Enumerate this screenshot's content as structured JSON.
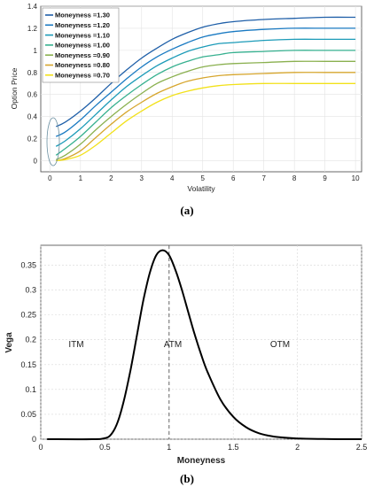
{
  "chart_data": [
    {
      "type": "line",
      "caption": "(a)",
      "xlabel": "Volatility",
      "ylabel": "Option Price",
      "xlim": [
        -0.3,
        10.2
      ],
      "ylim": [
        -0.1,
        1.4
      ],
      "xticks": [
        "0",
        "1",
        "2",
        "3",
        "4",
        "5",
        "6",
        "7",
        "8",
        "9",
        "10"
      ],
      "yticks": [
        "0",
        "0.2",
        "0.4",
        "0.6",
        "0.8",
        "1",
        "1.2",
        "1.4"
      ],
      "grid": true,
      "legend_position": "top-left",
      "annotation": "ellipse around curve starts near volatility 0",
      "series": [
        {
          "name": "Moneyness =1.30",
          "color": "#1f5fa8",
          "x": [
            0.2,
            0.5,
            1,
            1.5,
            2,
            2.5,
            3,
            3.5,
            4,
            4.5,
            5,
            5.5,
            6,
            7,
            8,
            9,
            10
          ],
          "y": [
            0.31,
            0.35,
            0.45,
            0.57,
            0.7,
            0.82,
            0.93,
            1.02,
            1.1,
            1.16,
            1.21,
            1.24,
            1.26,
            1.28,
            1.29,
            1.3,
            1.3
          ]
        },
        {
          "name": "Moneyness =1.20",
          "color": "#1a7ac2",
          "x": [
            0.2,
            0.5,
            1,
            1.5,
            2,
            2.5,
            3,
            3.5,
            4,
            4.5,
            5,
            5.5,
            6,
            7,
            8,
            9,
            10
          ],
          "y": [
            0.22,
            0.26,
            0.37,
            0.5,
            0.62,
            0.74,
            0.85,
            0.94,
            1.01,
            1.07,
            1.12,
            1.15,
            1.17,
            1.19,
            1.2,
            1.2,
            1.2
          ]
        },
        {
          "name": "Moneyness =1.10",
          "color": "#1c9bb8",
          "x": [
            0.2,
            0.5,
            1,
            1.5,
            2,
            2.5,
            3,
            3.5,
            4,
            4.5,
            5,
            5.5,
            6,
            7,
            8,
            9,
            10
          ],
          "y": [
            0.13,
            0.18,
            0.29,
            0.42,
            0.55,
            0.67,
            0.77,
            0.86,
            0.93,
            0.99,
            1.03,
            1.06,
            1.07,
            1.09,
            1.1,
            1.1,
            1.1
          ]
        },
        {
          "name": "Moneyness =1.00",
          "color": "#36b08f",
          "x": [
            0.2,
            0.5,
            1,
            1.5,
            2,
            2.5,
            3,
            3.5,
            4,
            4.5,
            5,
            5.5,
            6,
            7,
            8,
            9,
            10
          ],
          "y": [
            0.05,
            0.11,
            0.22,
            0.35,
            0.48,
            0.59,
            0.69,
            0.78,
            0.85,
            0.9,
            0.94,
            0.96,
            0.98,
            0.99,
            1.0,
            1.0,
            1.0
          ]
        },
        {
          "name": "Moneyness =0.90",
          "color": "#8ab04f",
          "x": [
            0.2,
            0.5,
            1,
            1.5,
            2,
            2.5,
            3,
            3.5,
            4,
            4.5,
            5,
            5.5,
            6,
            7,
            8,
            9,
            10
          ],
          "y": [
            0.01,
            0.05,
            0.15,
            0.28,
            0.4,
            0.51,
            0.61,
            0.7,
            0.76,
            0.81,
            0.85,
            0.87,
            0.88,
            0.89,
            0.9,
            0.9,
            0.9
          ]
        },
        {
          "name": "Moneyness =0.80",
          "color": "#d6a62e",
          "x": [
            0.2,
            0.5,
            1,
            1.5,
            2,
            2.5,
            3,
            3.5,
            4,
            4.5,
            5,
            5.5,
            6,
            7,
            8,
            9,
            10
          ],
          "y": [
            0.0,
            0.02,
            0.09,
            0.21,
            0.33,
            0.44,
            0.53,
            0.61,
            0.67,
            0.72,
            0.75,
            0.77,
            0.78,
            0.79,
            0.8,
            0.8,
            0.8
          ]
        },
        {
          "name": "Moneyness =0.70",
          "color": "#f2e11a",
          "x": [
            0.2,
            0.5,
            1,
            1.5,
            2,
            2.5,
            3,
            3.5,
            4,
            4.5,
            5,
            5.5,
            6,
            7,
            8,
            9,
            10
          ],
          "y": [
            0.0,
            0.01,
            0.05,
            0.14,
            0.25,
            0.36,
            0.45,
            0.53,
            0.59,
            0.63,
            0.66,
            0.68,
            0.69,
            0.7,
            0.7,
            0.7,
            0.7
          ]
        }
      ]
    },
    {
      "type": "line",
      "caption": "(b)",
      "xlabel": "Moneyness",
      "ylabel": "Vega",
      "xlim": [
        0,
        2.5
      ],
      "ylim": [
        0,
        0.39
      ],
      "xticks": [
        "0",
        "0.5",
        "1",
        "1.5",
        "2",
        "2.5"
      ],
      "yticks": [
        "0",
        "0.05",
        "0.1",
        "0.15",
        "0.2",
        "0.25",
        "0.3",
        "0.35"
      ],
      "grid": true,
      "regions": [
        "ITM",
        "ATM",
        "OTM"
      ],
      "vline_x": 1.0,
      "series": [
        {
          "color": "#000000",
          "x": [
            0.05,
            0.4,
            0.5,
            0.55,
            0.6,
            0.65,
            0.7,
            0.75,
            0.8,
            0.85,
            0.9,
            0.95,
            1.0,
            1.05,
            1.1,
            1.15,
            1.2,
            1.25,
            1.3,
            1.4,
            1.5,
            1.6,
            1.7,
            1.8,
            1.9,
            2.0,
            2.2,
            2.5
          ],
          "y": [
            0.0,
            0.0,
            0.002,
            0.01,
            0.035,
            0.08,
            0.14,
            0.21,
            0.28,
            0.335,
            0.37,
            0.38,
            0.37,
            0.34,
            0.3,
            0.255,
            0.21,
            0.17,
            0.135,
            0.08,
            0.045,
            0.024,
            0.012,
            0.006,
            0.003,
            0.0015,
            0.0003,
            0.0
          ]
        }
      ]
    }
  ]
}
